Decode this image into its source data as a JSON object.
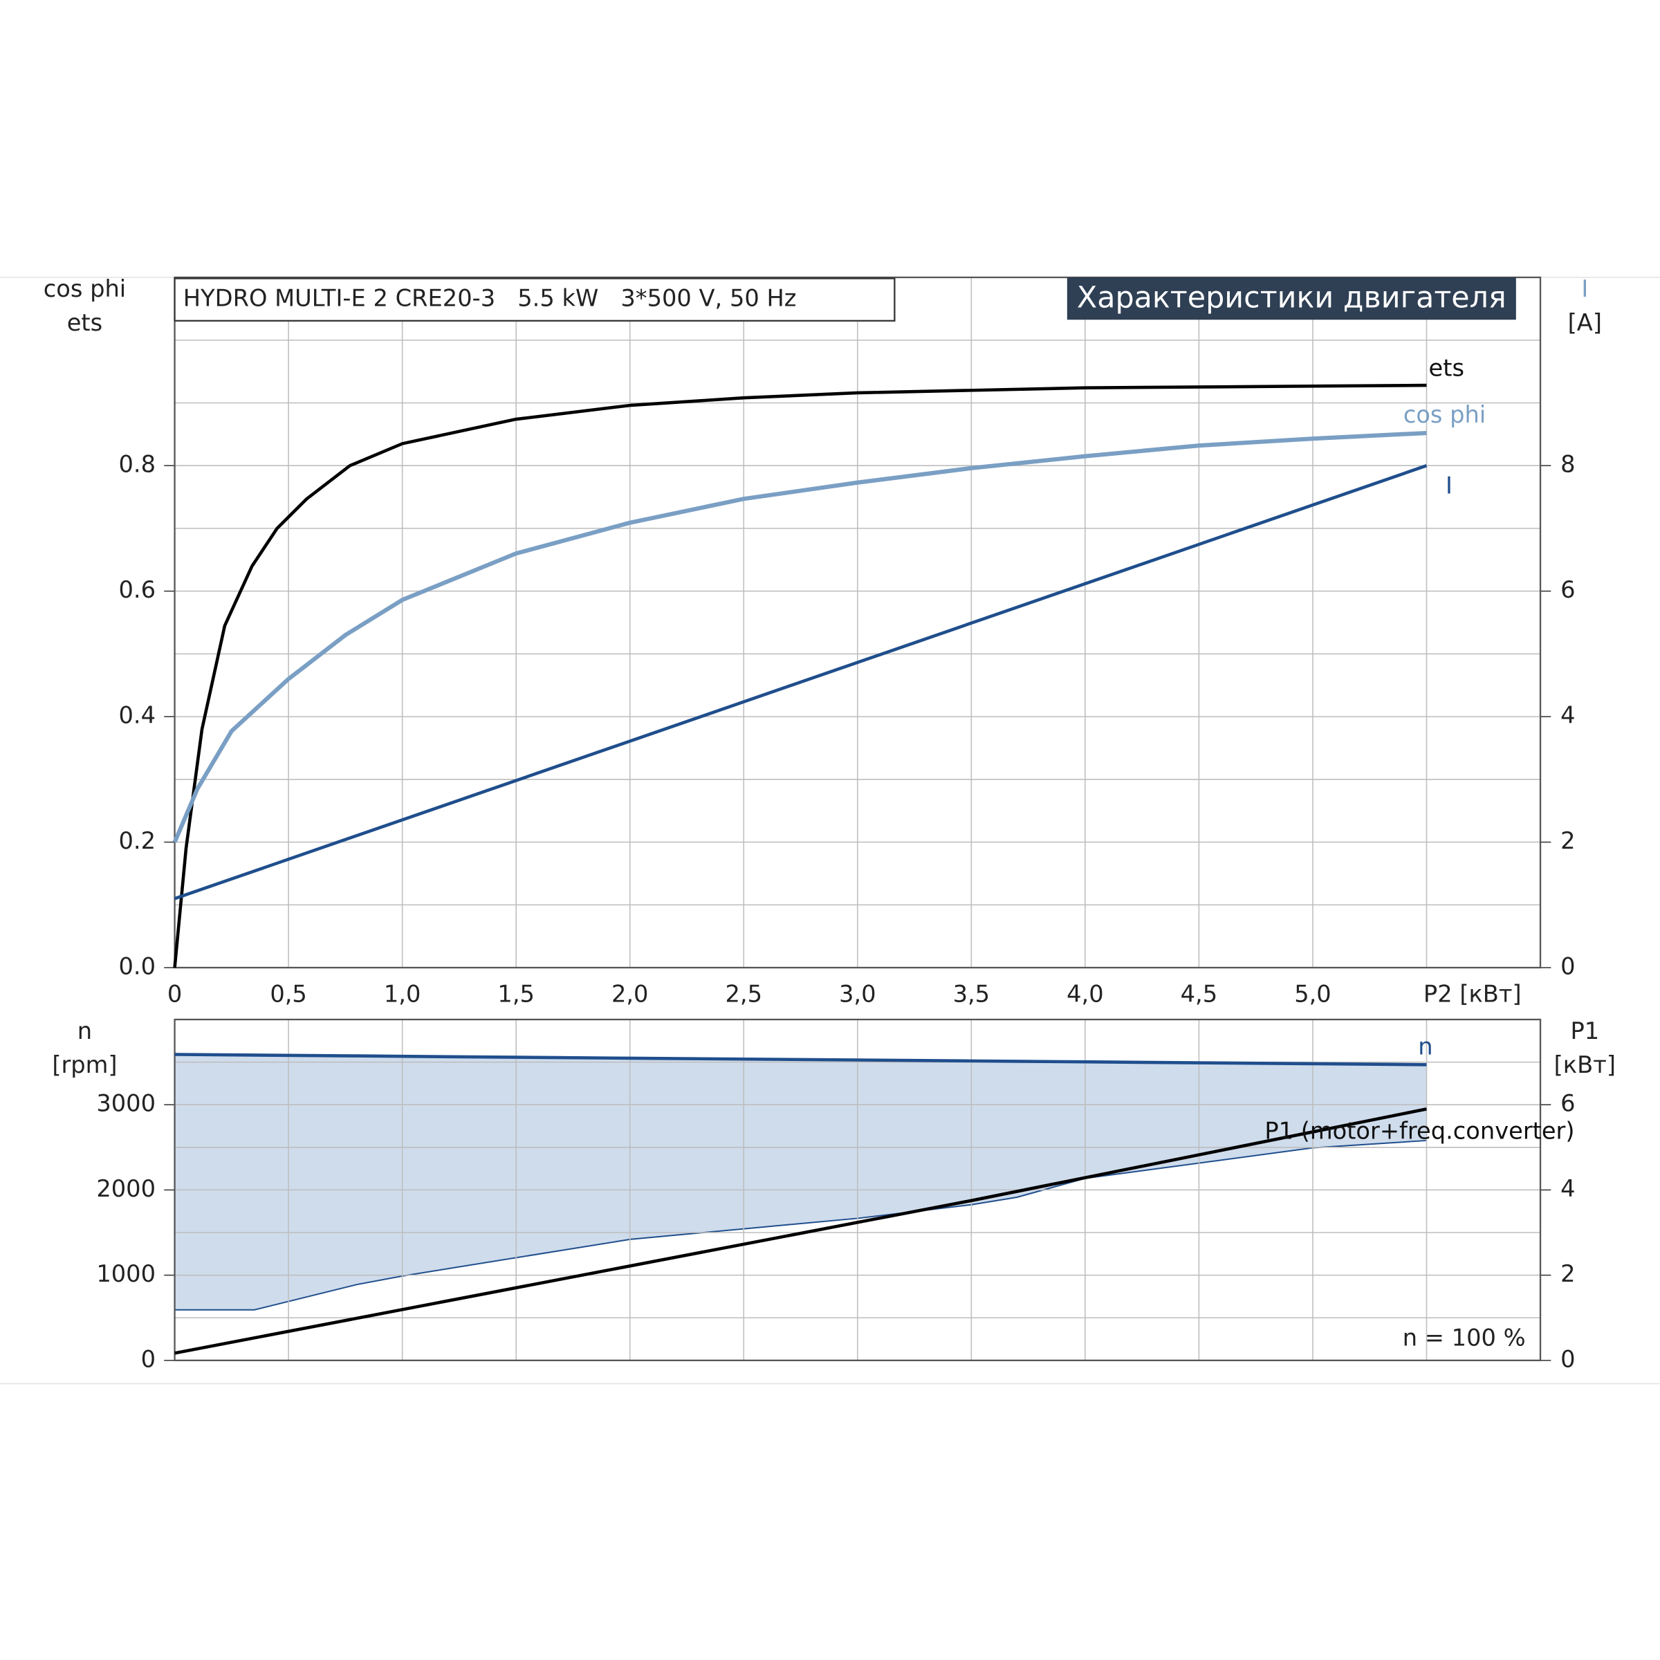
{
  "chart_data": [
    {
      "type": "line",
      "title": "HYDRO MULTI-E 2 CRE20-3   5.5 kW   3*500 V, 50 Hz",
      "subtitle": "Характеристики двигателя",
      "ylabel": [
        "cos phi",
        "ets"
      ],
      "y2label": [
        "I",
        "[A]"
      ],
      "xlim": [
        0,
        6
      ],
      "xticks": [
        0,
        {
          "value": 0.5,
          "label": "0,5"
        },
        {
          "value": 1.0,
          "label": "1,0"
        },
        {
          "value": 1.5,
          "label": "1,5"
        },
        {
          "value": 2.0,
          "label": "2,0"
        },
        {
          "value": 2.5,
          "label": "2,5"
        },
        {
          "value": 3.0,
          "label": "3,0"
        },
        {
          "value": 3.5,
          "label": "3,5"
        },
        {
          "value": 4.0,
          "label": "4,0"
        },
        {
          "value": 4.5,
          "label": "4,5"
        },
        {
          "value": 5.0,
          "label": "5,0"
        },
        {
          "value": 5.5,
          "label": "P2 [кВт]"
        }
      ],
      "ylim": [
        0,
        1.1
      ],
      "yticks": [
        {
          "value": 0,
          "label": "0.0"
        },
        0.2,
        0.4,
        0.6,
        0.8
      ],
      "yminor": [
        0.1,
        0.3,
        0.5,
        0.7,
        0.9,
        1.0
      ],
      "y2lim": [
        0,
        11
      ],
      "y2ticks": [
        0,
        2,
        4,
        6,
        8
      ],
      "grid": true,
      "series": [
        {
          "name": "ets",
          "color": "#000000",
          "x": [
            0,
            0.05,
            0.12,
            0.22,
            0.34,
            0.45,
            0.58,
            0.77,
            1.0,
            1.5,
            2.0,
            2.5,
            3.0,
            4.0,
            5.5
          ],
          "values": [
            0,
            0.19,
            0.38,
            0.545,
            0.64,
            0.7,
            0.747,
            0.8,
            0.835,
            0.874,
            0.896,
            0.908,
            0.916,
            0.924,
            0.928
          ]
        },
        {
          "name": "cos phi",
          "color": "#7a9fc4",
          "x": [
            0,
            0.1,
            0.25,
            0.5,
            0.75,
            1.0,
            1.5,
            2.0,
            2.5,
            3.0,
            3.5,
            4.0,
            4.5,
            5.0,
            5.5
          ],
          "values": [
            0.2,
            0.285,
            0.377,
            0.46,
            0.53,
            0.586,
            0.66,
            0.709,
            0.747,
            0.773,
            0.796,
            0.815,
            0.832,
            0.843,
            0.852
          ]
        },
        {
          "name": "I",
          "color": "#1f4e8c",
          "axis": "y2",
          "x": [
            0,
            5.5
          ],
          "values": [
            1.1,
            8.0
          ]
        }
      ]
    },
    {
      "type": "line",
      "ylabel": [
        "n",
        "[rpm]"
      ],
      "y2label": [
        "P1",
        "[кВт]"
      ],
      "annotation": "n = 100 %",
      "xlim": [
        0,
        6
      ],
      "ylim": [
        0,
        4000
      ],
      "yticks": [
        0,
        1000,
        2000,
        3000
      ],
      "yminor": [
        500,
        1500,
        2500,
        3500
      ],
      "y2lim": [
        0,
        8
      ],
      "y2ticks": [
        0,
        2,
        4,
        6
      ],
      "grid": true,
      "area": {
        "color": "#cfdcec",
        "x": [
          0,
          0.35,
          0.8,
          1.0,
          2.0,
          3.0,
          3.5,
          3.7,
          4.0,
          5.0,
          5.5
        ],
        "values": [
          593,
          593,
          890,
          990,
          1420,
          1667,
          1827,
          1914,
          2136,
          2494,
          2580
        ]
      },
      "series": [
        {
          "name": "n",
          "color": "#1f4e8c",
          "x": [
            0,
            0.35,
            0.8,
            1.0,
            2.0,
            3.0,
            3.5,
            3.7,
            4.0,
            5.0,
            5.5
          ],
          "values": [
            3590,
            3582,
            3573,
            3568,
            3546,
            3525,
            3514,
            3509,
            3503,
            3481,
            3470
          ]
        },
        {
          "name": "P1 (motor+freq.converter)",
          "color": "#000000",
          "axis": "y2",
          "x": [
            0,
            3.5,
            5.5
          ],
          "values": [
            0.17,
            3.75,
            5.9
          ]
        }
      ]
    }
  ]
}
